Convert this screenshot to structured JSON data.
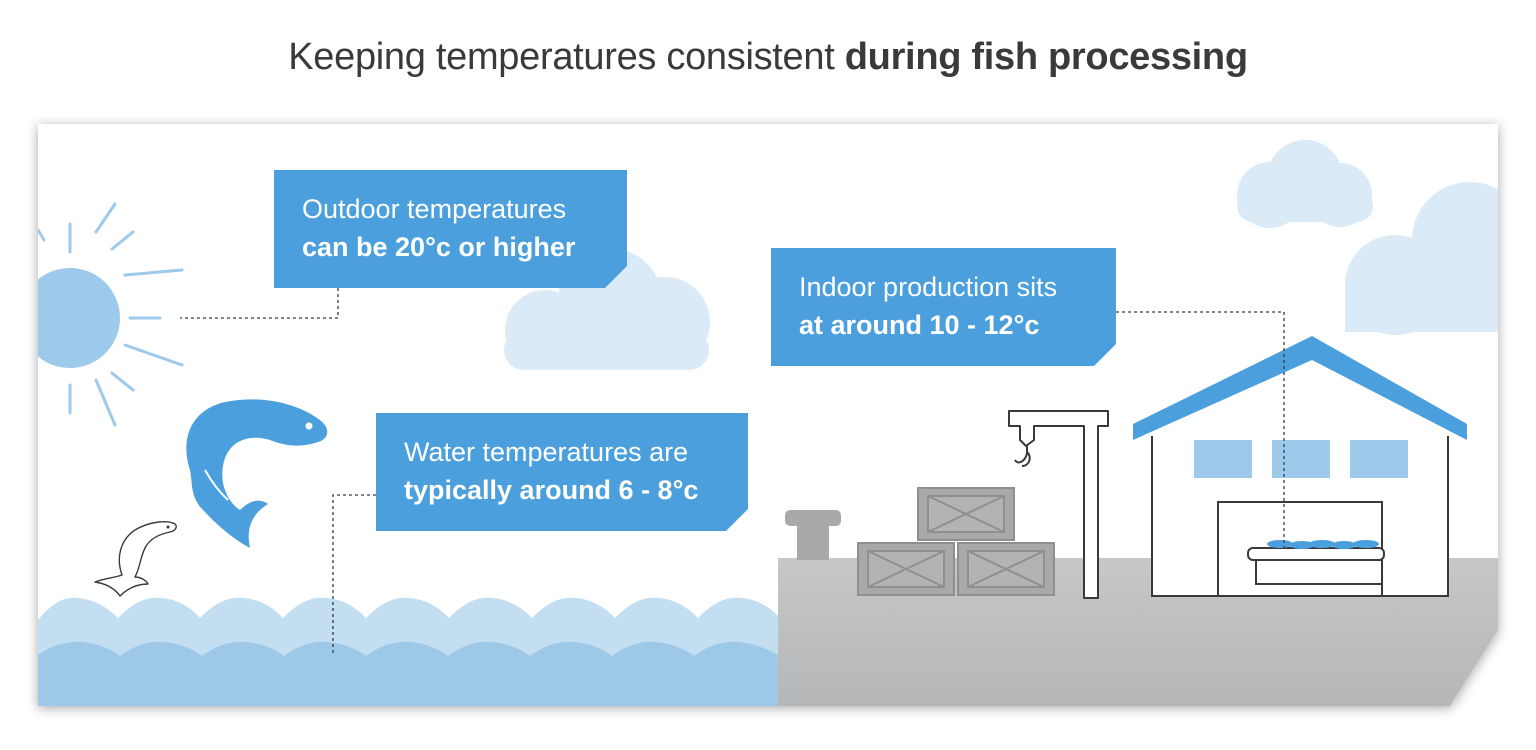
{
  "title": {
    "regular": "Keeping temperatures consistent ",
    "bold": "during fish processing"
  },
  "callouts": {
    "outdoor": {
      "line1": "Outdoor temperatures",
      "line2": "can be 20°c or higher"
    },
    "water": {
      "line1": "Water temperatures are",
      "line2": "typically around 6 - 8°c"
    },
    "indoor": {
      "line1": "Indoor production sits",
      "line2": "at around 10 - 12°c"
    }
  },
  "colors": {
    "callout_blue": "#4a9fdc",
    "light_blue": "#9dc9ea",
    "pale_blue": "#dbeaf7",
    "water_light": "#c3ddf1",
    "water_dark": "#9ec8e7",
    "ground_gray": "#bcbdbf",
    "crate_gray": "#a9a9ab",
    "title_text": "#3a3a3c"
  }
}
